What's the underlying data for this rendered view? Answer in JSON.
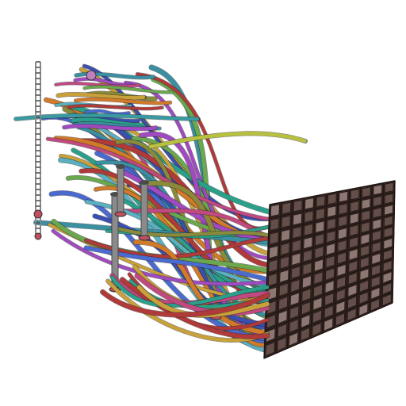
{
  "colors": {
    "background": "#ffffff",
    "panel_base": "#3a2a26",
    "panel_cell": "#6b5550",
    "panel_highlight": "#9c8580",
    "panel_line": "#1e1412",
    "strand_palette": [
      "#3a8fa0",
      "#c9a13b",
      "#3a4fb0",
      "#6aa84f",
      "#b03a3a",
      "#a04ac0",
      "#d07a2a",
      "#2aa08a",
      "#8a8a3a",
      "#4a6ad0",
      "#c04a80",
      "#5ab0c0"
    ],
    "pillar": "#8a8a8a",
    "pillar_dark": "#4a4a4a",
    "bolt": "#c05060"
  },
  "icons": {
    "panel": "wire-grid-panel",
    "strands": "bead-chain-strands",
    "pillars": "support-pillars"
  },
  "counts": {
    "strands": 46,
    "pillars": 5
  }
}
